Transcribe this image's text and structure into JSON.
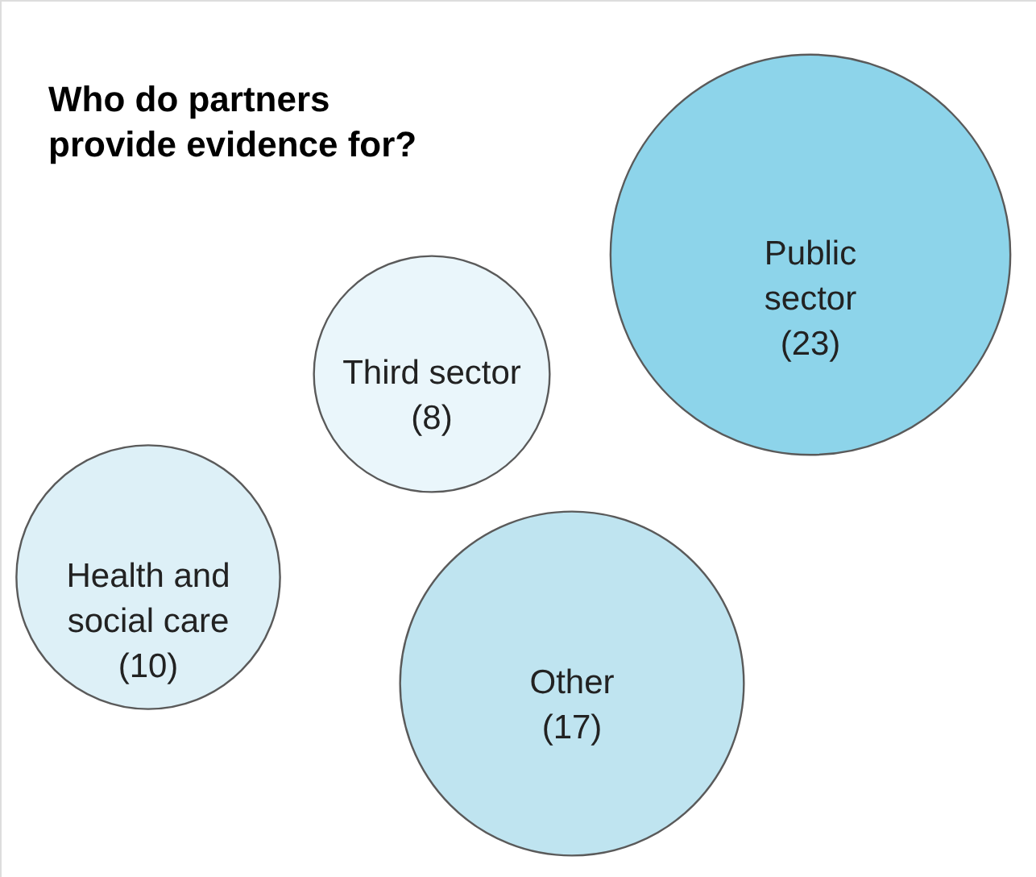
{
  "chart_data": {
    "type": "other",
    "title": "Who do partners provide evidence for?",
    "categories": [
      "Public sector",
      "Third sector",
      "Health and social care",
      "Other"
    ],
    "values": [
      23,
      8,
      10,
      17
    ],
    "value_labels": [
      "(23)",
      "(8)",
      "(10)",
      "(17)"
    ],
    "colors": [
      "#8dd4ea",
      "#eaf6fb",
      "#ddf0f7",
      "#bfe4f0"
    ]
  }
}
